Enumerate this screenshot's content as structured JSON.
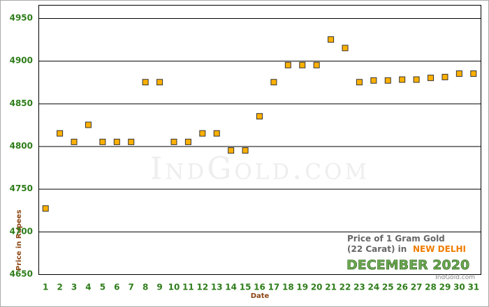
{
  "chart_data": {
    "type": "line",
    "x_label": "Date",
    "y_label": "Price in Rupees",
    "categories": [
      "1",
      "2",
      "3",
      "4",
      "5",
      "6",
      "7",
      "8",
      "9",
      "10",
      "11",
      "12",
      "13",
      "14",
      "15",
      "16",
      "17",
      "18",
      "19",
      "20",
      "21",
      "22",
      "23",
      "24",
      "25",
      "26",
      "27",
      "28",
      "29",
      "30",
      "31"
    ],
    "series": [
      {
        "color": "#3f9a5c",
        "marker_color": "#ffb000",
        "values": [
          4727,
          4815,
          4805,
          4825,
          4805,
          4805,
          4805,
          4875,
          4875,
          4805,
          4805,
          4815,
          4815,
          4795,
          4795,
          4835,
          4875,
          4895,
          4895,
          4895,
          4925,
          4915,
          4875,
          4877,
          4877,
          4878,
          4878,
          4880,
          4881,
          4885,
          4885
        ]
      }
    ],
    "ylim": [
      4650,
      4950
    ],
    "yticks": [
      4650,
      4700,
      4750,
      4800,
      4850,
      4900,
      4950
    ],
    "grid": true,
    "watermark": "IndGold.com",
    "annotation": {
      "line1": "Price of 1 Gram Gold",
      "line2": "(22 Carat) in",
      "city": "NEW DELHI",
      "month": "DECEMBER 2020",
      "source": "IndGold.com"
    }
  }
}
